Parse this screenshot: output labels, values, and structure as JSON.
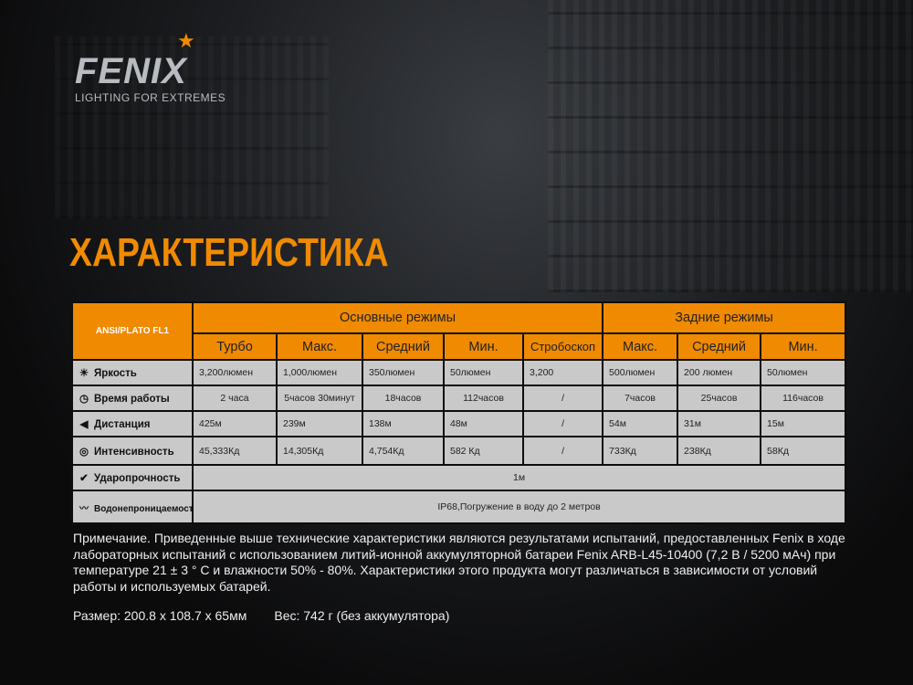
{
  "brand": {
    "name": "FENIX",
    "tagline": "LIGHTING FOR EXTREMES",
    "accent": "#f08a00"
  },
  "title": "ХАРАКТЕРИСТИКА",
  "table": {
    "standard": "ANSI/PLATO FL1",
    "groups": [
      "Основные режимы",
      "Задние режимы"
    ],
    "modes": [
      "Турбо",
      "Макс.",
      "Средний",
      "Мин.",
      "Стробоскоп",
      "Макс.",
      "Средний",
      "Мин."
    ],
    "rows": [
      {
        "icon": "brightness-icon",
        "label": "Яркость",
        "values": [
          "3,200люмен",
          "1,000люмен",
          "350люмен",
          "50люмен",
          "3,200",
          "500люмен",
          "200 люмен",
          "50люмен"
        ]
      },
      {
        "icon": "clock-icon",
        "label": "Время работы",
        "values": [
          "2 часа",
          "5часов 30минут",
          "18часов",
          "112часов",
          "/",
          "7часов",
          "25часов",
          "116часов"
        ]
      },
      {
        "icon": "distance-icon",
        "label": "Дистанция",
        "values": [
          "425м",
          "239м",
          "138м",
          "48м",
          "/",
          "54м",
          "31м",
          "15м"
        ]
      },
      {
        "icon": "target-icon",
        "label": "Интенсивность",
        "values": [
          "45,333Кд",
          "14,305Кд",
          "4,754Кд",
          "582 Кд",
          "/",
          "733Кд",
          "238Кд",
          "58Кд"
        ]
      }
    ],
    "impact": {
      "icon": "impact-icon",
      "label": "Ударопрочность",
      "value": "1м"
    },
    "waterproof": {
      "icon": "water-icon",
      "label": "Водонепроницаемость",
      "value": "IP68,Погружение в воду до 2 метров"
    }
  },
  "note": "Примечание. Приведенные выше технические характеристики являются результатами испытаний, предоставленных Fenix в ходе лабораторных испытаний с использованием литий-ионной аккумуляторной батареи Fenix ARB-L45-10400 (7,2 В / 5200 мАч) при температуре 21 ± 3 ° C и влажности 50% - 80%. Характеристики этого продукта могут различаться в зависимости от условий работы и используемых батарей.",
  "size": "Размер: 200.8 x 108.7 x 65мм",
  "weight": "Вес: 742 г (без аккумулятора)"
}
